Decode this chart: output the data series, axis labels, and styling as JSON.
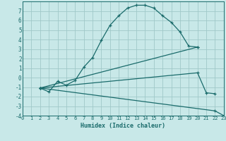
{
  "xlabel": "Humidex (Indice chaleur)",
  "bg_color": "#c8e8e8",
  "grid_color": "#a0c8c8",
  "line_color": "#1a6b6b",
  "xlim": [
    0,
    23
  ],
  "ylim": [
    -4,
    8
  ],
  "xticks": [
    0,
    1,
    2,
    3,
    4,
    5,
    6,
    7,
    8,
    9,
    10,
    11,
    12,
    13,
    14,
    15,
    16,
    17,
    18,
    19,
    20,
    21,
    22,
    23
  ],
  "yticks": [
    -4,
    -3,
    -2,
    -1,
    0,
    1,
    2,
    3,
    4,
    5,
    6,
    7
  ],
  "line1_x": [
    2,
    3,
    4,
    5,
    6,
    7,
    8,
    9,
    10,
    11,
    12,
    13,
    14,
    15,
    16,
    17,
    18,
    19,
    20
  ],
  "line1_y": [
    -1.1,
    -1.5,
    -0.4,
    -0.8,
    -0.3,
    1.1,
    2.1,
    3.9,
    5.5,
    6.5,
    7.3,
    7.6,
    7.6,
    7.3,
    6.5,
    5.8,
    4.8,
    3.3,
    3.2
  ],
  "line2_x": [
    2,
    20
  ],
  "line2_y": [
    -1.1,
    3.2
  ],
  "line3_x": [
    2,
    20,
    21,
    22
  ],
  "line3_y": [
    -1.1,
    0.5,
    -1.6,
    -1.7
  ],
  "line4_x": [
    2,
    22,
    23
  ],
  "line4_y": [
    -1.1,
    -3.5,
    -4.0
  ]
}
